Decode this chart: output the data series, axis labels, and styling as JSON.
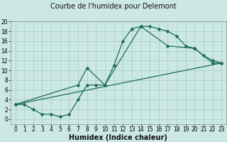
{
  "title": "Courbe de l'humidex pour Delemont",
  "xlabel": "Humidex (Indice chaleur)",
  "bg_color": "#cce8e4",
  "grid_color": "#aacfca",
  "line_color": "#1a6b5a",
  "xlim": [
    -0.5,
    23.5
  ],
  "ylim": [
    -1,
    20
  ],
  "xticks": [
    0,
    1,
    2,
    3,
    4,
    5,
    6,
    7,
    8,
    9,
    10,
    11,
    12,
    13,
    14,
    15,
    16,
    17,
    18,
    19,
    20,
    21,
    22,
    23
  ],
  "yticks": [
    0,
    2,
    4,
    6,
    8,
    10,
    12,
    14,
    16,
    18,
    20
  ],
  "series1_x": [
    0,
    1,
    2,
    3,
    4,
    5,
    6,
    7,
    8,
    9,
    10,
    11,
    12,
    13,
    14,
    15,
    16,
    17,
    18,
    19,
    20,
    21,
    22,
    23
  ],
  "series1_y": [
    3,
    3,
    2,
    1,
    1,
    0.5,
    1,
    4,
    7,
    7,
    7,
    11,
    16,
    18.5,
    19,
    19,
    18.5,
    18,
    17,
    15,
    14.5,
    13,
    12,
    11.5
  ],
  "series2_x": [
    0,
    7,
    8,
    10,
    14,
    17,
    20,
    22,
    23
  ],
  "series2_y": [
    3,
    7,
    10.5,
    7,
    19,
    15,
    14.5,
    11.5,
    11.5
  ],
  "series3_x": [
    0,
    23
  ],
  "series3_y": [
    3,
    11.5
  ],
  "marker_size": 2.5,
  "linewidth": 0.9,
  "tick_fontsize": 5.5,
  "xlabel_fontsize": 7,
  "title_fontsize": 7
}
